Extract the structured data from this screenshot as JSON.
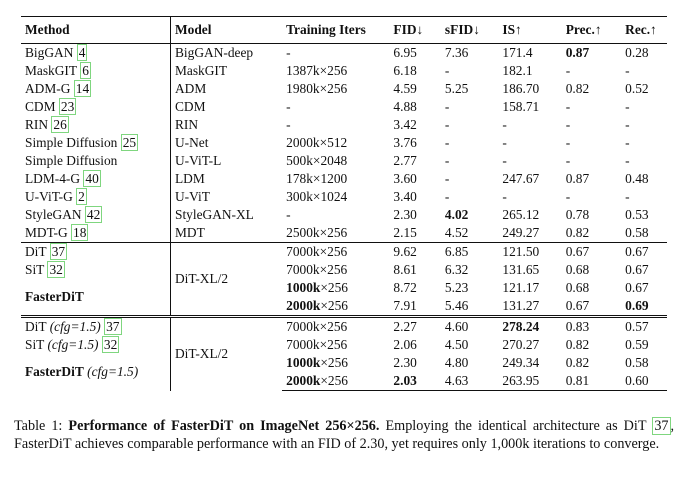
{
  "header": {
    "method": "Method",
    "model": "Model",
    "iters": "Training Iters",
    "fid": "FID↓",
    "sfid": "sFID↓",
    "is": "IS↑",
    "prec": "Prec.↑",
    "rec": "Rec.↑"
  },
  "baselines": [
    {
      "method": "BigGAN",
      "ref": "4",
      "model": "BigGAN-deep",
      "iters": "-",
      "fid": "6.95",
      "sfid": "7.36",
      "is": "171.4",
      "prec": "0.87",
      "rec": "0.28"
    },
    {
      "method": "MaskGIT",
      "ref": "6",
      "model": "MaskGIT",
      "iters": "1387k×256",
      "fid": "6.18",
      "sfid": "-",
      "is": "182.1",
      "prec": "-",
      "rec": "-"
    },
    {
      "method": "ADM-G",
      "ref": "14",
      "model": "ADM",
      "iters": "1980k×256",
      "fid": "4.59",
      "sfid": "5.25",
      "is": "186.70",
      "prec": "0.82",
      "rec": "0.52"
    },
    {
      "method": "CDM",
      "ref": "23",
      "model": "CDM",
      "iters": "-",
      "fid": "4.88",
      "sfid": "-",
      "is": "158.71",
      "prec": "-",
      "rec": "-"
    },
    {
      "method": "RIN",
      "ref": "26",
      "model": "RIN",
      "iters": "-",
      "fid": "3.42",
      "sfid": "-",
      "is": "-",
      "prec": "-",
      "rec": "-"
    },
    {
      "method": "Simple Diffusion",
      "ref": "25",
      "model": "U-Net",
      "iters": "2000k×512",
      "fid": "3.76",
      "sfid": "-",
      "is": "-",
      "prec": "-",
      "rec": "-"
    },
    {
      "method": "Simple Diffusion",
      "ref": "",
      "model": "U-ViT-L",
      "iters": "500k×2048",
      "fid": "2.77",
      "sfid": "-",
      "is": "-",
      "prec": "-",
      "rec": "-"
    },
    {
      "method": "LDM-4-G",
      "ref": "40",
      "model": "LDM",
      "iters": "178k×1200",
      "fid": "3.60",
      "sfid": "-",
      "is": "247.67",
      "prec": "0.87",
      "rec": "0.48"
    },
    {
      "method": "U-ViT-G",
      "ref": "2",
      "model": "U-ViT",
      "iters": "300k×1024",
      "fid": "3.40",
      "sfid": "-",
      "is": "-",
      "prec": "-",
      "rec": "-"
    },
    {
      "method": "StyleGAN",
      "ref": "42",
      "model": "StyleGAN-XL",
      "iters": "-",
      "fid": "2.30",
      "sfid": "4.02",
      "is": "265.12",
      "prec": "0.78",
      "rec": "0.53"
    },
    {
      "method": "MDT-G",
      "ref": "18",
      "model": "MDT",
      "iters": "2500k×256",
      "fid": "2.15",
      "sfid": "4.52",
      "is": "249.27",
      "prec": "0.82",
      "rec": "0.58"
    }
  ],
  "group1": {
    "model": "DiT-XL/2",
    "dit": {
      "method": "DiT",
      "ref": "37",
      "iters": "7000k×256",
      "fid": "9.62",
      "sfid": "6.85",
      "is": "121.50",
      "prec": "0.67",
      "rec": "0.67"
    },
    "sit": {
      "method": "SiT",
      "ref": "32",
      "iters": "7000k×256",
      "fid": "8.61",
      "sfid": "6.32",
      "is": "131.65",
      "prec": "0.68",
      "rec": "0.67"
    },
    "fd1": {
      "method": "FasterDiT",
      "iters_bold": "1000k",
      "iters_rest": "×256",
      "fid": "8.72",
      "sfid": "5.23",
      "is": "121.17",
      "prec": "0.68",
      "rec": "0.67"
    },
    "fd2": {
      "iters_bold": "2000k",
      "iters_rest": "×256",
      "fid": "7.91",
      "sfid": "5.46",
      "is": "131.27",
      "prec": "0.67",
      "rec": "0.69"
    }
  },
  "group2": {
    "model": "DiT-XL/2",
    "dit": {
      "method": "DiT",
      "cfg": "(cfg=1.5)",
      "ref": "37",
      "iters": "7000k×256",
      "fid": "2.27",
      "sfid": "4.60",
      "is": "278.24",
      "prec": "0.83",
      "rec": "0.57"
    },
    "sit": {
      "method": "SiT",
      "cfg": "(cfg=1.5)",
      "ref": "32",
      "iters": "7000k×256",
      "fid": "2.06",
      "sfid": "4.50",
      "is": "270.27",
      "prec": "0.82",
      "rec": "0.59"
    },
    "fd1": {
      "method": "FasterDiT",
      "cfg": "(cfg=1.5)",
      "iters_bold": "1000k",
      "iters_rest": "×256",
      "fid": "2.30",
      "sfid": "4.80",
      "is": "249.34",
      "prec": "0.82",
      "rec": "0.58"
    },
    "fd2": {
      "iters_bold": "2000k",
      "iters_rest": "×256",
      "fid": "2.03",
      "sfid": "4.63",
      "is": "263.95",
      "prec": "0.81",
      "rec": "0.60"
    }
  },
  "caption": {
    "label": "Table 1:",
    "title": "Performance of FasterDiT on ImageNet 256×256.",
    "text1": "Employing the identical architecture as DiT",
    "ref": "37",
    "text2": ", FasterDiT achieves comparable performance with an FID of 2.30, yet requires only 1,000k iterations to converge."
  }
}
